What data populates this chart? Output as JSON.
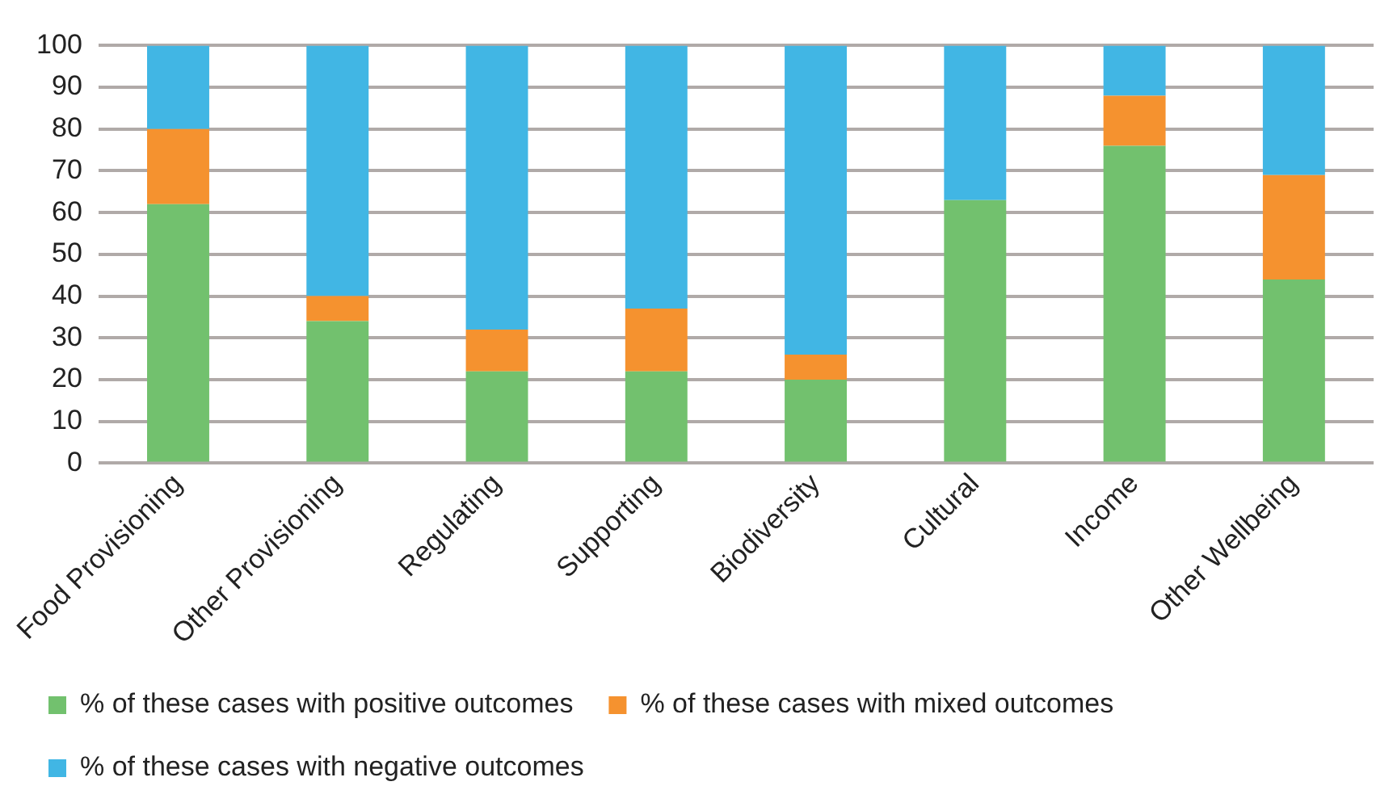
{
  "chart_data": {
    "type": "bar",
    "stacked": true,
    "categories": [
      "Food Provisioning",
      "Other Provisioning",
      "Regulating",
      "Supporting",
      "Biodiversity",
      "Cultural",
      "Income",
      "Other Wellbeing"
    ],
    "series": [
      {
        "name": "% of these cases with positive outcomes",
        "color": "#72c16e",
        "values": [
          62,
          34,
          22,
          22,
          20,
          63,
          76,
          44
        ]
      },
      {
        "name": "% of these cases with mixed outcomes",
        "color": "#f5922f",
        "values": [
          18,
          6,
          10,
          15,
          6,
          0,
          12,
          25
        ]
      },
      {
        "name": "% of these cases with negative outcomes",
        "color": "#41b6e4",
        "values": [
          20,
          60,
          68,
          63,
          74,
          37,
          12,
          31
        ]
      }
    ],
    "ylim": [
      0,
      100
    ],
    "yticks": [
      0,
      10,
      20,
      30,
      40,
      50,
      60,
      70,
      80,
      90,
      100
    ],
    "grid": "y",
    "legend": "bottom"
  }
}
